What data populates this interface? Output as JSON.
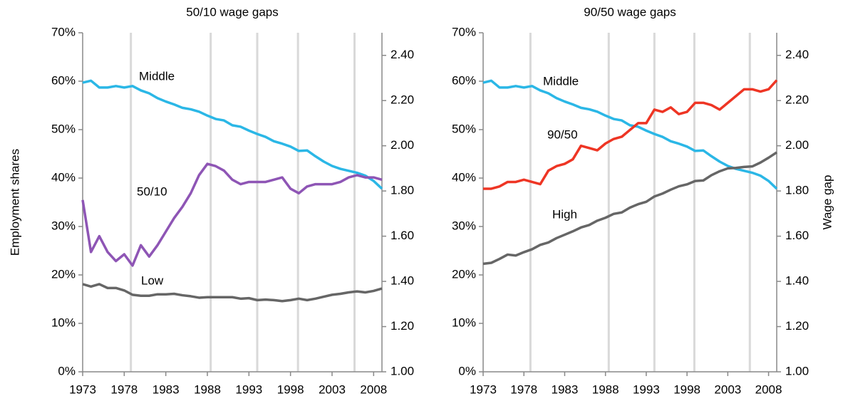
{
  "chart_data": [
    {
      "type": "line",
      "title": "50/10 wage gaps",
      "ylabel": "Employment shares",
      "x": [
        1973,
        1974,
        1975,
        1976,
        1977,
        1978,
        1979,
        1980,
        1981,
        1982,
        1983,
        1984,
        1985,
        1986,
        1987,
        1988,
        1989,
        1990,
        1991,
        1992,
        1993,
        1994,
        1995,
        1996,
        1997,
        1998,
        1999,
        2000,
        2001,
        2002,
        2003,
        2004,
        2005,
        2006,
        2007,
        2008,
        2009
      ],
      "xlim": [
        1973,
        2009
      ],
      "xticks": [
        1973,
        1978,
        1983,
        1988,
        1993,
        1998,
        2003,
        2008
      ],
      "ylim": [
        0,
        70
      ],
      "yticks": [
        {
          "value": 0,
          "label": "0%"
        },
        {
          "value": 10,
          "label": "10%"
        },
        {
          "value": 20,
          "label": "20%"
        },
        {
          "value": 30,
          "label": "30%"
        },
        {
          "value": 40,
          "label": "40%"
        },
        {
          "value": 50,
          "label": "50%"
        },
        {
          "value": 60,
          "label": "60%"
        },
        {
          "value": 70,
          "label": "70%"
        }
      ],
      "y2lim": [
        1.0,
        2.5
      ],
      "y2ticks": [
        {
          "value": 1,
          "label": "1.00"
        },
        {
          "value": 1.2,
          "label": "1.20"
        },
        {
          "value": 1.4,
          "label": "1.40"
        },
        {
          "value": 1.6,
          "label": "1.60"
        },
        {
          "value": 1.8,
          "label": "1.80"
        },
        {
          "value": 2,
          "label": "2.00"
        },
        {
          "value": 2.2,
          "label": "2.20"
        },
        {
          "value": 2.4,
          "label": "2.40"
        }
      ],
      "vlines": [
        1978.8,
        1988.4,
        1994.0,
        1998.9,
        2005.7
      ],
      "series": [
        {
          "name": "Middle",
          "color": "#2bb7e6",
          "values": [
            59.7,
            60.1,
            58.7,
            58.7,
            59.0,
            58.7,
            59.0,
            58.1,
            57.5,
            56.5,
            55.8,
            55.2,
            54.5,
            54.2,
            53.7,
            52.9,
            52.2,
            51.9,
            50.9,
            50.6,
            49.8,
            49.1,
            48.5,
            47.6,
            47.1,
            46.5,
            45.6,
            45.7,
            44.5,
            43.4,
            42.5,
            41.9,
            41.5,
            41.1,
            40.5,
            39.4,
            37.8
          ]
        },
        {
          "name": "Low",
          "color": "#666666",
          "values": [
            18.1,
            17.6,
            18.1,
            17.3,
            17.3,
            16.8,
            15.9,
            15.7,
            15.7,
            16.0,
            16.0,
            16.1,
            15.8,
            15.6,
            15.3,
            15.4,
            15.4,
            15.4,
            15.4,
            15.1,
            15.2,
            14.8,
            14.9,
            14.8,
            14.6,
            14.8,
            15.1,
            14.8,
            15.1,
            15.5,
            15.9,
            16.1,
            16.4,
            16.6,
            16.4,
            16.7,
            17.2
          ]
        },
        {
          "name": "50/10",
          "color": "#8e55b5",
          "axis": "y2",
          "values": [
            1.76,
            1.53,
            1.6,
            1.53,
            1.49,
            1.52,
            1.47,
            1.56,
            1.51,
            1.56,
            1.62,
            1.68,
            1.73,
            1.79,
            1.87,
            1.92,
            1.91,
            1.89,
            1.85,
            1.83,
            1.84,
            1.84,
            1.84,
            1.85,
            1.86,
            1.81,
            1.79,
            1.82,
            1.83,
            1.83,
            1.83,
            1.84,
            1.86,
            1.87,
            1.86,
            1.86,
            1.85
          ]
        }
      ]
    },
    {
      "type": "line",
      "title": "90/50 wage gaps",
      "y2label": "Wage gap",
      "x": [
        1973,
        1974,
        1975,
        1976,
        1977,
        1978,
        1979,
        1980,
        1981,
        1982,
        1983,
        1984,
        1985,
        1986,
        1987,
        1988,
        1989,
        1990,
        1991,
        1992,
        1993,
        1994,
        1995,
        1996,
        1997,
        1998,
        1999,
        2000,
        2001,
        2002,
        2003,
        2004,
        2005,
        2006,
        2007,
        2008,
        2009
      ],
      "xlim": [
        1973,
        2009
      ],
      "xticks": [
        1973,
        1978,
        1983,
        1988,
        1993,
        1998,
        2003,
        2008
      ],
      "ylim": [
        0,
        70
      ],
      "yticks": [
        {
          "value": 0,
          "label": "0%"
        },
        {
          "value": 10,
          "label": "10%"
        },
        {
          "value": 20,
          "label": "20%"
        },
        {
          "value": 30,
          "label": "30%"
        },
        {
          "value": 40,
          "label": "40%"
        },
        {
          "value": 50,
          "label": "50%"
        },
        {
          "value": 60,
          "label": "60%"
        },
        {
          "value": 70,
          "label": "70%"
        }
      ],
      "y2lim": [
        1.0,
        2.5
      ],
      "y2ticks": [
        {
          "value": 1,
          "label": "1.00"
        },
        {
          "value": 1.2,
          "label": "1.20"
        },
        {
          "value": 1.4,
          "label": "1.40"
        },
        {
          "value": 1.6,
          "label": "1.60"
        },
        {
          "value": 1.8,
          "label": "1.80"
        },
        {
          "value": 2,
          "label": "2.00"
        },
        {
          "value": 2.2,
          "label": "2.20"
        },
        {
          "value": 2.4,
          "label": "2.40"
        }
      ],
      "vlines": [
        1978.8,
        1988.4,
        1994.0,
        1998.9,
        2005.7
      ],
      "series": [
        {
          "name": "Middle",
          "color": "#2bb7e6",
          "values": [
            59.7,
            60.1,
            58.7,
            58.7,
            59.0,
            58.7,
            59.0,
            58.1,
            57.5,
            56.5,
            55.8,
            55.2,
            54.5,
            54.2,
            53.7,
            52.9,
            52.2,
            51.9,
            50.9,
            50.6,
            49.8,
            49.1,
            48.5,
            47.6,
            47.1,
            46.5,
            45.6,
            45.7,
            44.5,
            43.4,
            42.5,
            41.9,
            41.5,
            41.1,
            40.5,
            39.4,
            37.8
          ]
        },
        {
          "name": "High",
          "color": "#666666",
          "values": [
            22.3,
            22.5,
            23.3,
            24.2,
            24.0,
            24.7,
            25.3,
            26.2,
            26.7,
            27.6,
            28.3,
            29.0,
            29.8,
            30.3,
            31.2,
            31.8,
            32.6,
            32.9,
            33.9,
            34.6,
            35.1,
            36.2,
            36.8,
            37.6,
            38.3,
            38.7,
            39.4,
            39.5,
            40.6,
            41.4,
            42.0,
            42.1,
            42.3,
            42.4,
            43.2,
            44.2,
            45.3
          ]
        },
        {
          "name": "90/50",
          "color": "#ee3524",
          "axis": "y2",
          "values": [
            1.81,
            1.81,
            1.82,
            1.84,
            1.84,
            1.85,
            1.84,
            1.83,
            1.89,
            1.91,
            1.92,
            1.94,
            2.0,
            1.99,
            1.98,
            2.01,
            2.03,
            2.04,
            2.07,
            2.1,
            2.1,
            2.16,
            2.15,
            2.17,
            2.14,
            2.15,
            2.19,
            2.19,
            2.18,
            2.16,
            2.19,
            2.22,
            2.25,
            2.25,
            2.24,
            2.25,
            2.29
          ]
        }
      ]
    }
  ]
}
